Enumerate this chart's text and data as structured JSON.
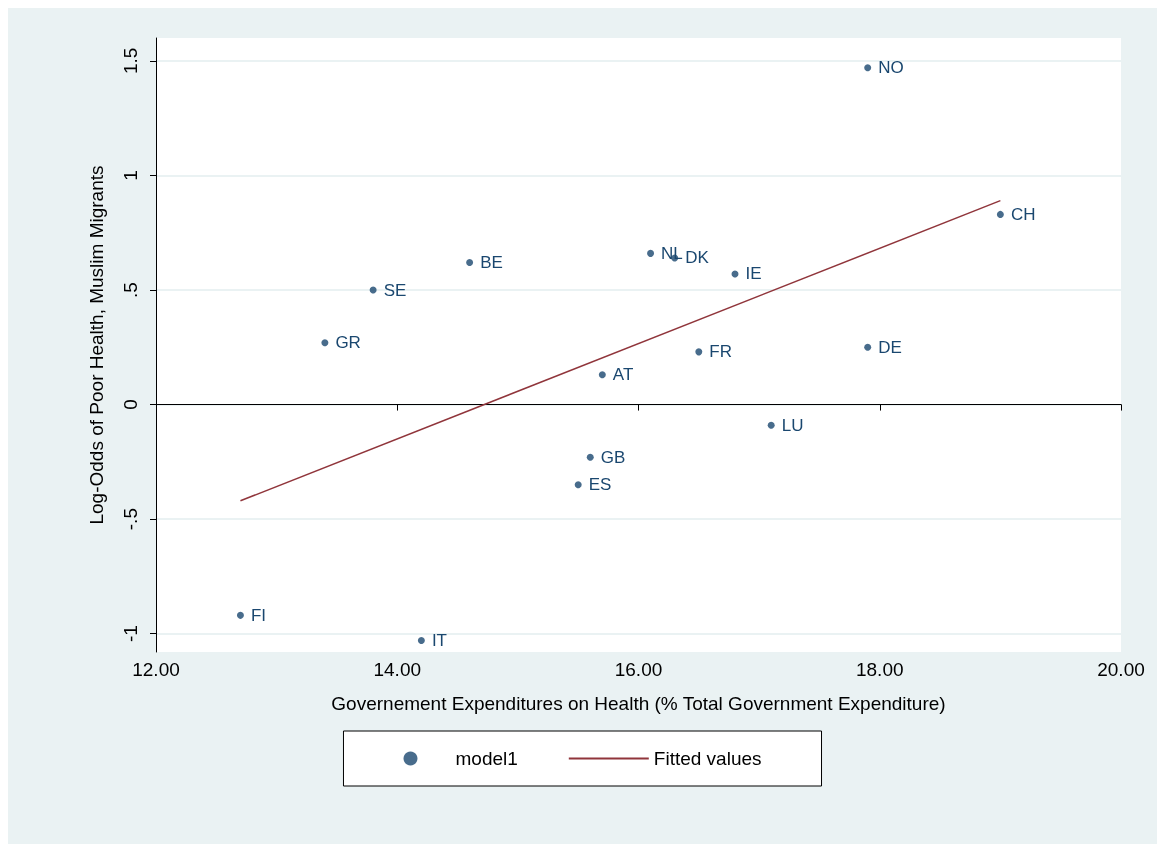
{
  "chart_data": {
    "type": "scatter",
    "xlabel": "Governement Expenditures on Health (% Total Government Expenditure)",
    "ylabel": "Log-Odds of Poor Health, Muslim Migrants",
    "xlim": [
      12,
      20
    ],
    "ylim": [
      -1.08,
      1.6
    ],
    "xticks": [
      {
        "value": 12,
        "label": "12.00"
      },
      {
        "value": 14,
        "label": "14.00"
      },
      {
        "value": 16,
        "label": "16.00"
      },
      {
        "value": 18,
        "label": "18.00"
      },
      {
        "value": 20,
        "label": "20.00"
      }
    ],
    "yticks": [
      {
        "value": -1,
        "label": "-1"
      },
      {
        "value": -0.5,
        "label": "-.5"
      },
      {
        "value": 0,
        "label": "0"
      },
      {
        "value": 0.5,
        "label": ".5"
      },
      {
        "value": 1,
        "label": "1"
      },
      {
        "value": 1.5,
        "label": "1.5"
      }
    ],
    "grid": "y",
    "legend": "bottom",
    "series": [
      {
        "name": "model1",
        "color": "#1a476f",
        "marker": "circle",
        "x": [
          17.9,
          19.0,
          16.1,
          16.3,
          16.8,
          14.6,
          13.8,
          13.4,
          15.7,
          16.5,
          17.9,
          17.1,
          15.6,
          15.5,
          12.7,
          14.2
        ],
        "values": [
          1.47,
          0.83,
          0.66,
          0.64,
          0.57,
          0.62,
          0.5,
          0.27,
          0.13,
          0.23,
          0.25,
          -0.09,
          -0.23,
          -0.35,
          -0.92,
          -1.03
        ]
      },
      {
        "name": "Fitted values",
        "type": "line",
        "color": "#90353b",
        "x": [
          12.7,
          19.0
        ],
        "values": [
          -0.42,
          0.89
        ]
      }
    ],
    "annotations": [
      {
        "text": "NO",
        "x": 17.9,
        "y": 1.47
      },
      {
        "text": "CH",
        "x": 19.0,
        "y": 0.83
      },
      {
        "text": "NL",
        "x": 16.1,
        "y": 0.66
      },
      {
        "text": "DK",
        "x": 16.3,
        "y": 0.64
      },
      {
        "text": "IE",
        "x": 16.8,
        "y": 0.57
      },
      {
        "text": "BE",
        "x": 14.6,
        "y": 0.62
      },
      {
        "text": "SE",
        "x": 13.8,
        "y": 0.5
      },
      {
        "text": "GR",
        "x": 13.4,
        "y": 0.27
      },
      {
        "text": "AT",
        "x": 15.7,
        "y": 0.13
      },
      {
        "text": "FR",
        "x": 16.5,
        "y": 0.23
      },
      {
        "text": "DE",
        "x": 17.9,
        "y": 0.25
      },
      {
        "text": "LU",
        "x": 17.1,
        "y": -0.09
      },
      {
        "text": "GB",
        "x": 15.6,
        "y": -0.23
      },
      {
        "text": "ES",
        "x": 15.5,
        "y": -0.35
      },
      {
        "text": "FI",
        "x": 12.7,
        "y": -0.92
      },
      {
        "text": "IT",
        "x": 14.2,
        "y": -1.03
      }
    ]
  }
}
